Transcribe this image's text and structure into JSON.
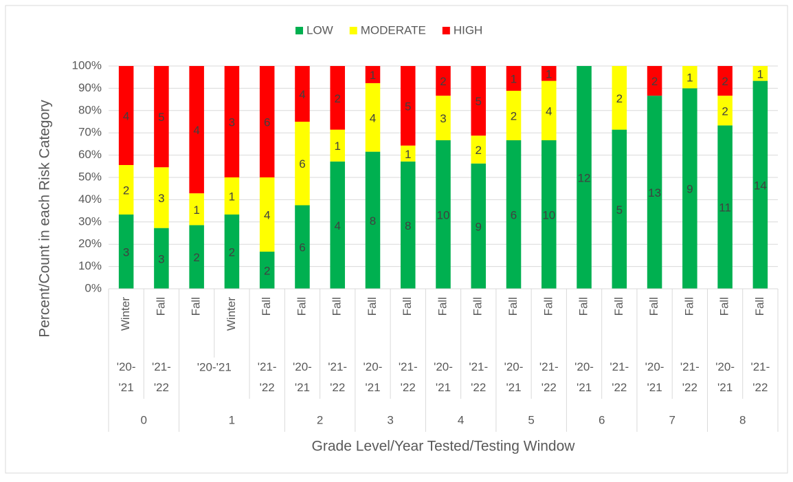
{
  "chart_data": {
    "type": "bar",
    "stacking": "percent",
    "y_label": "Percent/Count in each Risk Category",
    "x_label": "Grade Level/Year Tested/Testing Window",
    "legend": "top",
    "grid": true,
    "ylim": [
      0,
      100
    ],
    "yticks": [
      {
        "value": 0,
        "label": "0%"
      },
      {
        "value": 10,
        "label": "10%"
      },
      {
        "value": 20,
        "label": "20%"
      },
      {
        "value": 30,
        "label": "30%"
      },
      {
        "value": 40,
        "label": "40%"
      },
      {
        "value": 50,
        "label": "50%"
      },
      {
        "value": 60,
        "label": "60%"
      },
      {
        "value": 70,
        "label": "70%"
      },
      {
        "value": 80,
        "label": "80%"
      },
      {
        "value": 90,
        "label": "90%"
      },
      {
        "value": 100,
        "label": "100%"
      }
    ],
    "groups": [
      {
        "label": "0",
        "years": [
          {
            "label": "'20-'21",
            "windows": [
              "Winter"
            ]
          },
          {
            "label": "'21-'22",
            "windows": [
              "Fall"
            ]
          }
        ]
      },
      {
        "label": "1",
        "years": [
          {
            "label": "'20-'21",
            "windows": [
              "Fall",
              "Winter"
            ]
          },
          {
            "label": "'21-'22",
            "windows": [
              "Fall"
            ]
          }
        ]
      },
      {
        "label": "2",
        "years": [
          {
            "label": "'20-'21",
            "windows": [
              "Fall"
            ]
          },
          {
            "label": "'21-'22",
            "windows": [
              "Fall"
            ]
          }
        ]
      },
      {
        "label": "3",
        "years": [
          {
            "label": "'20-'21",
            "windows": [
              "Fall"
            ]
          },
          {
            "label": "'21-'22",
            "windows": [
              "Fall"
            ]
          }
        ]
      },
      {
        "label": "4",
        "years": [
          {
            "label": "'20-'21",
            "windows": [
              "Fall"
            ]
          },
          {
            "label": "'21-'22",
            "windows": [
              "Fall"
            ]
          }
        ]
      },
      {
        "label": "5",
        "years": [
          {
            "label": "'20-'21",
            "windows": [
              "Fall"
            ]
          },
          {
            "label": "'21-'22",
            "windows": [
              "Fall"
            ]
          }
        ]
      },
      {
        "label": "6",
        "years": [
          {
            "label": "'20-'21",
            "windows": [
              "Fall"
            ]
          },
          {
            "label": "'21-'22",
            "windows": [
              "Fall"
            ]
          }
        ]
      },
      {
        "label": "7",
        "years": [
          {
            "label": "'20-'21",
            "windows": [
              "Fall"
            ]
          },
          {
            "label": "'21-'22",
            "windows": [
              "Fall"
            ]
          }
        ]
      },
      {
        "label": "8",
        "years": [
          {
            "label": "'20-'21",
            "windows": [
              "Fall"
            ]
          },
          {
            "label": "'21-'22",
            "windows": [
              "Fall"
            ]
          }
        ]
      }
    ],
    "series": [
      {
        "name": "LOW",
        "color": "#00b050",
        "values": [
          3,
          3,
          2,
          2,
          2,
          6,
          4,
          8,
          8,
          10,
          9,
          6,
          10,
          12,
          5,
          13,
          9,
          11,
          14
        ]
      },
      {
        "name": "MODERATE",
        "color": "#ffff00",
        "values": [
          2,
          3,
          1,
          1,
          4,
          6,
          1,
          4,
          1,
          3,
          2,
          2,
          4,
          null,
          2,
          null,
          1,
          2,
          1
        ]
      },
      {
        "name": "HIGH",
        "color": "#ff0000",
        "values": [
          4,
          5,
          4,
          3,
          6,
          4,
          2,
          1,
          5,
          2,
          5,
          1,
          1,
          null,
          null,
          2,
          null,
          2,
          null
        ]
      }
    ]
  }
}
